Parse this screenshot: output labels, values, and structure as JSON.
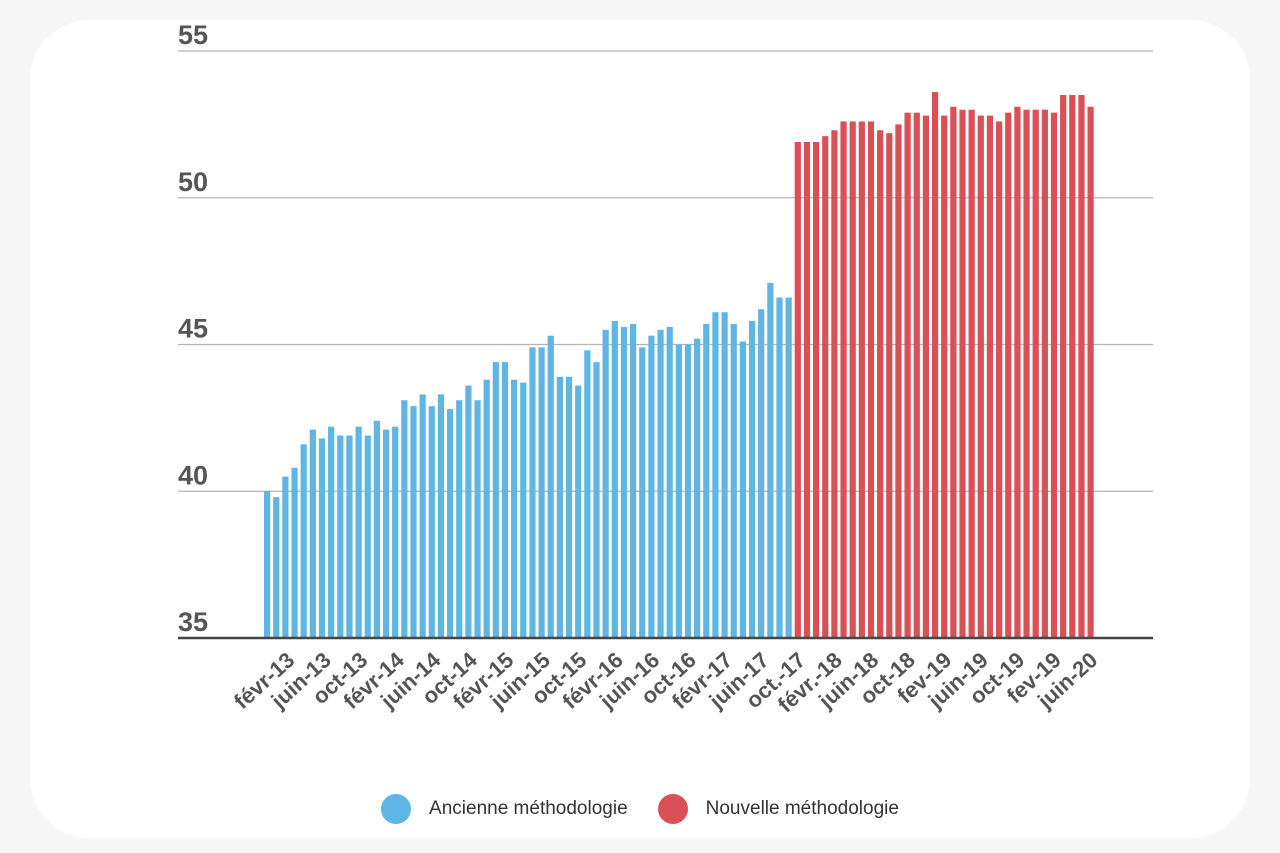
{
  "colors": {
    "old": "#5fb5e3",
    "new": "#db4f56",
    "grid": "#b5b5b5",
    "axis": "#444444"
  },
  "legend": {
    "old": "Ancienne méthodologie",
    "new": "Nouvelle méthodologie"
  },
  "chart_data": {
    "type": "bar",
    "title": "",
    "xlabel": "",
    "ylabel": "",
    "ylim": [
      35,
      55
    ],
    "yticks": [
      35,
      40,
      45,
      50,
      55
    ],
    "grid": true,
    "legend_position": "bottom",
    "xtick_labels": [
      "févr-13",
      "juin-13",
      "oct-13",
      "févr-14",
      "juin-14",
      "oct-14",
      "févr-15",
      "juin-15",
      "oct-15",
      "févr-16",
      "juin-16",
      "oct-16",
      "févr-17",
      "juin-17",
      "oct.-17",
      "févr.-18",
      "juin-18",
      "oct-18",
      "fev-19",
      "juin-19",
      "oct-19",
      "fev-19",
      "juin-20"
    ],
    "series": [
      {
        "name": "Ancienne méthodologie",
        "values": [
          40.0,
          39.8,
          40.5,
          40.8,
          41.6,
          42.1,
          41.8,
          42.2,
          41.9,
          41.9,
          42.2,
          41.9,
          42.4,
          42.1,
          42.2,
          43.1,
          42.9,
          43.3,
          42.9,
          43.3,
          42.8,
          43.1,
          43.6,
          43.1,
          43.8,
          44.4,
          44.4,
          43.8,
          43.7,
          44.9,
          44.9,
          45.3,
          43.9,
          43.9,
          43.6,
          44.8,
          44.4,
          45.5,
          45.8,
          45.6,
          45.7,
          44.9,
          45.3,
          45.5,
          45.6,
          45.0,
          45.0,
          45.2,
          45.7,
          46.1,
          46.1,
          45.7,
          45.1,
          45.8,
          46.2,
          47.1,
          46.6,
          46.6
        ]
      },
      {
        "name": "Nouvelle méthodologie",
        "values": [
          51.9,
          51.9,
          51.9,
          52.1,
          52.3,
          52.6,
          52.6,
          52.6,
          52.6,
          52.3,
          52.2,
          52.5,
          52.9,
          52.9,
          52.8,
          53.6,
          52.8,
          53.1,
          53.0,
          53.0,
          52.8,
          52.8,
          52.6,
          52.9,
          53.1,
          53.0,
          53.0,
          53.0,
          52.9,
          53.5,
          53.5,
          53.5,
          53.1
        ]
      }
    ]
  }
}
